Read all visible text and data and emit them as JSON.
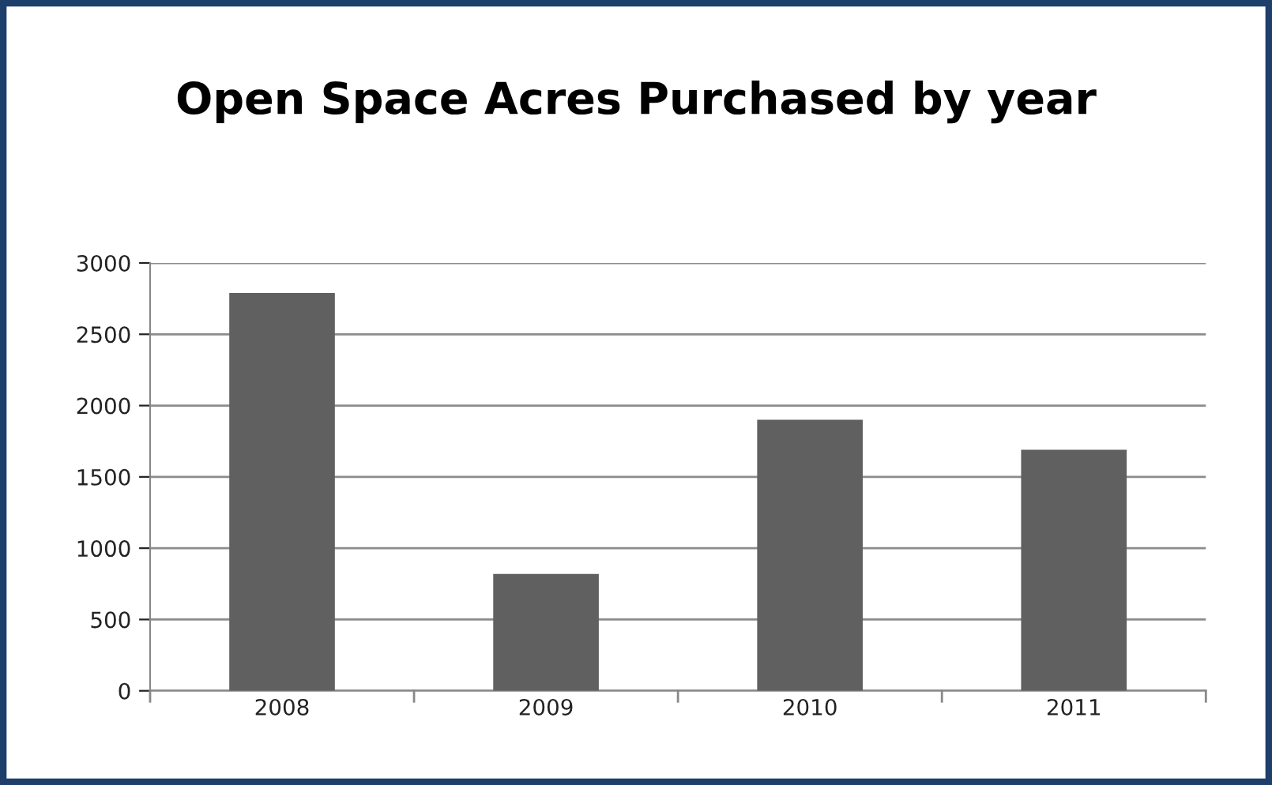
{
  "chart_data": {
    "type": "bar",
    "title": "Open Space Acres Purchased by year",
    "categories": [
      "2008",
      "2009",
      "2010",
      "2011"
    ],
    "values": [
      2790,
      820,
      1900,
      1690
    ],
    "color": "#606060",
    "ylim": [
      0,
      3000
    ],
    "yticks": [
      0,
      500,
      1000,
      1500,
      2000,
      2500,
      3000
    ],
    "grid": "y",
    "legend": false
  }
}
